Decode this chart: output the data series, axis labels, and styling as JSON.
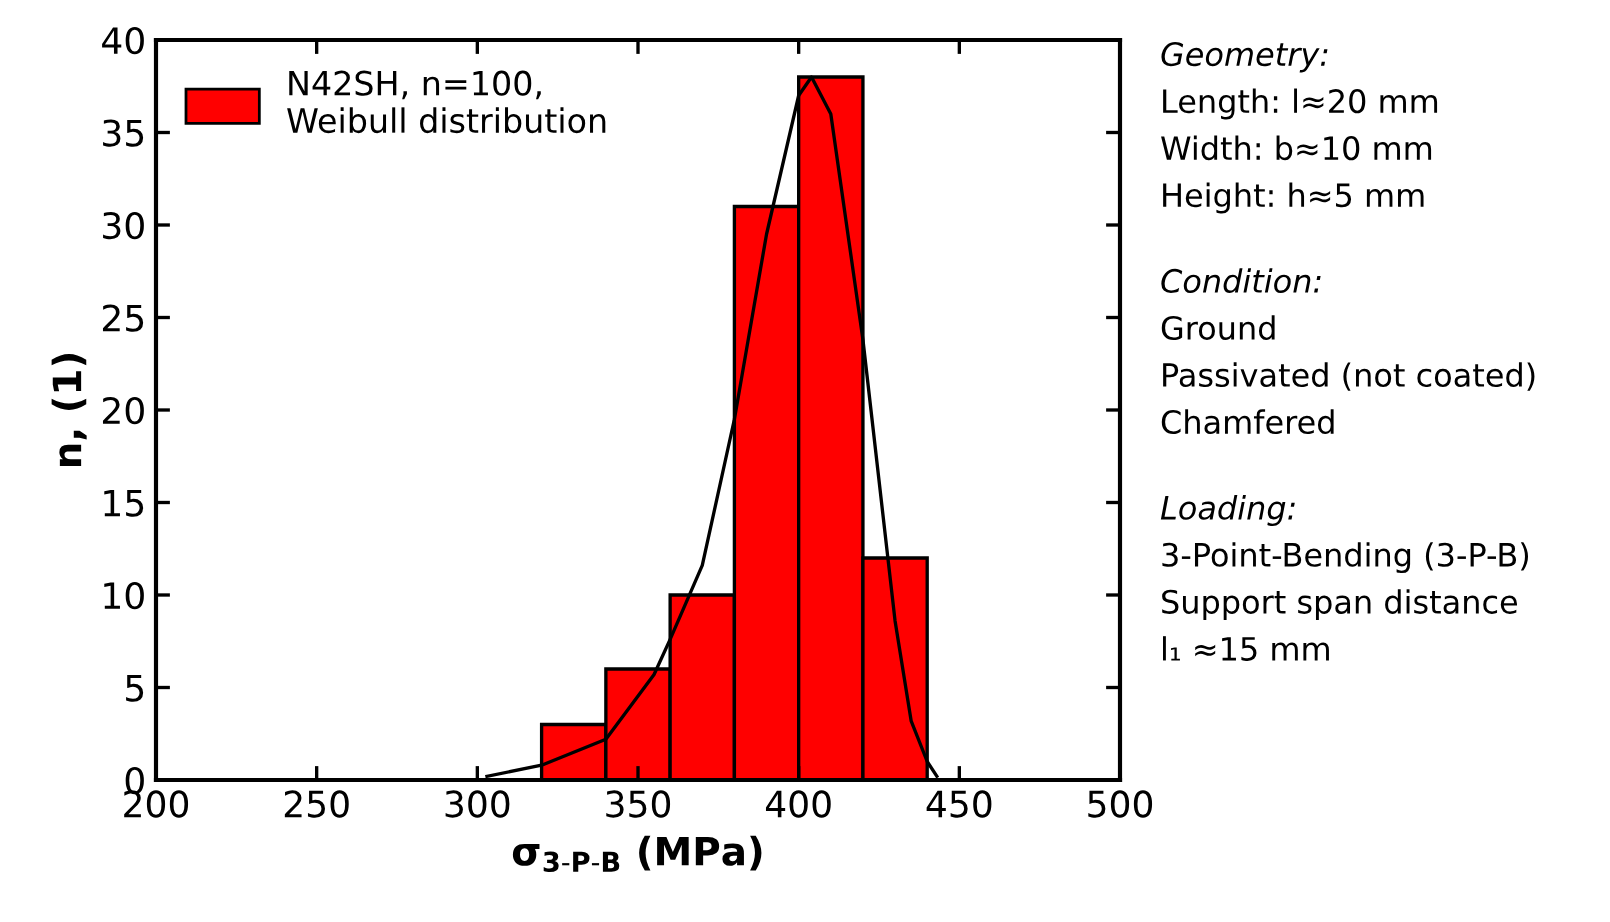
{
  "chart_data": {
    "type": "histogram",
    "xlabel": "σ$_{3-P-B}$ (MPa)",
    "ylabel": "n, (1)",
    "xlim": [
      200,
      500
    ],
    "xticks": [
      200,
      250,
      300,
      350,
      400,
      450,
      500
    ],
    "ylim": [
      0,
      40
    ],
    "yticks": [
      0,
      5,
      10,
      15,
      20,
      25,
      30,
      35,
      40
    ],
    "grid": false,
    "legend": "top left",
    "series": [
      {
        "name": "N42SH, n=100,\nWeibull distribution",
        "color": "#ff0000",
        "bins": [
          320,
          340,
          360,
          380,
          400,
          420,
          440
        ],
        "values": [
          3,
          6,
          10,
          31,
          38,
          12
        ]
      },
      {
        "type": "line",
        "color": "#000000",
        "x": [
          303,
          320,
          340,
          355,
          360,
          370,
          380,
          390,
          400,
          404,
          410,
          420,
          430,
          435,
          440,
          443
        ],
        "values": [
          0.2,
          0.8,
          2.2,
          5.7,
          7.6,
          11.6,
          19.5,
          29.5,
          37,
          38,
          36,
          23.8,
          8.6,
          3.2,
          1.0,
          0.2
        ]
      }
    ],
    "annotations": [
      "Geometry:\nLength: l≈20 mm\nWidth: b≈10 mm\nHeight: h≈5 mm",
      "Condition:\nGround\nPassivated (not coated)\nChamfered",
      "Loading:\n3-Point-Bending (3-P-B)\nSupport span distance\nl₁ ≈15 mm"
    ]
  }
}
